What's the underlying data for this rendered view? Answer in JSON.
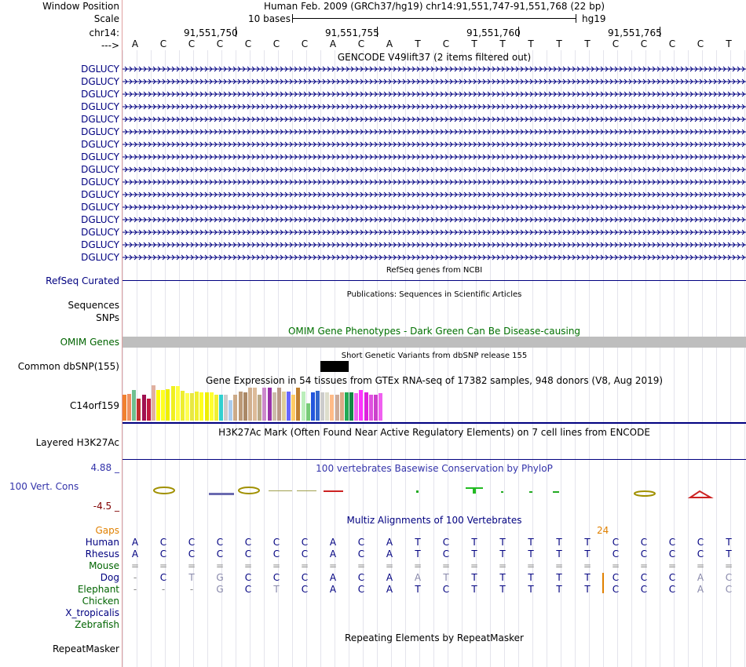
{
  "labels": {
    "window_position": "Window Position",
    "scale": "Scale",
    "chrom": "chr14:",
    "strand_marker": "--->",
    "gene_rows": [
      "DGLUCY",
      "DGLUCY",
      "DGLUCY",
      "DGLUCY",
      "DGLUCY",
      "DGLUCY",
      "DGLUCY",
      "DGLUCY",
      "DGLUCY",
      "DGLUCY",
      "DGLUCY",
      "DGLUCY",
      "DGLUCY",
      "DGLUCY",
      "DGLUCY",
      "DGLUCY"
    ],
    "refseq": "RefSeq Curated",
    "sequences": "Sequences",
    "snps": "SNPs",
    "omim": "OMIM Genes",
    "dbsnp": "Common dbSNP(155)",
    "gtex": "C14orf159",
    "h3k27ac": "Layered H3K27Ac",
    "phylop_max": "4.88 _",
    "phylop": "100 Vert. Cons",
    "phylop_min": "-4.5 _",
    "gaps": "Gaps",
    "species": [
      "Human",
      "Rhesus",
      "Mouse",
      "Dog",
      "Elephant",
      "Chicken",
      "X_tropicalis",
      "Zebrafish"
    ],
    "repeatmasker": "RepeatMasker"
  },
  "header": {
    "position_text": "Human Feb. 2009 (GRCh37/hg19)   chr14:91,551,747-91,551,768 (22 bp)",
    "scale_text": "10 bases",
    "assembly": "hg19",
    "coords": [
      "91,551,750",
      "91,551,755",
      "91,551,760",
      "91,551,765"
    ]
  },
  "sequence": [
    "A",
    "C",
    "C",
    "C",
    "C",
    "C",
    "C",
    "A",
    "C",
    "A",
    "T",
    "C",
    "T",
    "T",
    "T",
    "T",
    "T",
    "C",
    "C",
    "C",
    "C",
    "T"
  ],
  "tracks": {
    "gencode_title": "GENCODE V49lift37 (2 items filtered out)",
    "refseq_title": "RefSeq genes from NCBI",
    "publications_title": "Publications: Sequences in Scientific Articles",
    "omim_title": "OMIM Gene Phenotypes - Dark Green Can Be Disease-causing",
    "dbsnp_title": "Short Genetic Variants from dbSNP release 155",
    "gtex_title": "Gene Expression in 54 tissues from GTEx RNA-seq of 17382 samples, 948 donors (V8, Aug 2019)",
    "h3k27ac_title": "H3K27Ac Mark (Often Found Near Active Regulatory Elements) on 7 cell lines from ENCODE",
    "phylop_title": "100 vertebrates Basewise Conservation by PhyloP",
    "multiz_title": "Multiz Alignments of 100 Vertebrates",
    "gap_value": "24",
    "repeatmasker_title": "Repeating Elements by RepeatMasker"
  },
  "alignment": {
    "human": [
      "A",
      "C",
      "C",
      "C",
      "C",
      "C",
      "C",
      "A",
      "C",
      "A",
      "T",
      "C",
      "T",
      "T",
      "T",
      "T",
      "T",
      "C",
      "C",
      "C",
      "C",
      "T"
    ],
    "rhesus": [
      "A",
      "C",
      "C",
      "C",
      "C",
      "C",
      "C",
      "A",
      "C",
      "A",
      "T",
      "C",
      "T",
      "T",
      "T",
      "T",
      "T",
      "C",
      "C",
      "C",
      "C",
      "T"
    ],
    "mouse": [
      "=",
      "=",
      "=",
      "=",
      "=",
      "=",
      "=",
      "=",
      "=",
      "=",
      "=",
      "=",
      "=",
      "=",
      "=",
      "=",
      "=",
      "=",
      "=",
      "=",
      "=",
      "="
    ],
    "dog": [
      "-",
      "C",
      "T",
      "G",
      "C",
      "C",
      "C",
      "A",
      "C",
      "A",
      "A",
      "T",
      "T",
      "T",
      "T",
      "T",
      "T",
      "C",
      "C",
      "C",
      "A",
      "C"
    ],
    "elephant": [
      "-",
      "-",
      "-",
      "G",
      "C",
      "T",
      "C",
      "A",
      "C",
      "A",
      "T",
      "C",
      "T",
      "T",
      "T",
      "T",
      "T",
      "C",
      "C",
      "C",
      "A",
      "C"
    ]
  },
  "gtex_values": [
    0.55,
    0.57,
    0.65,
    0.47,
    0.55,
    0.47,
    0.75,
    0.65,
    0.65,
    0.67,
    0.74,
    0.74,
    0.64,
    0.58,
    0.58,
    0.62,
    0.6,
    0.6,
    0.6,
    0.55,
    0.55,
    0.55,
    0.44,
    0.55,
    0.62,
    0.6,
    0.7,
    0.7,
    0.55,
    0.7,
    0.7,
    0.6,
    0.7,
    0.62,
    0.62,
    0.55,
    0.7,
    0.62,
    0.37,
    0.6,
    0.64,
    0.6,
    0.6,
    0.55,
    0.55,
    0.6,
    0.6,
    0.6,
    0.58,
    0.65,
    0.6,
    0.55,
    0.55,
    0.58
  ],
  "gtex_colors": [
    "#f08030",
    "#f09060",
    "#70c090",
    "#c03030",
    "#a01050",
    "#c01840",
    "#e0b0a0",
    "#ffff00",
    "#ffff20",
    "#eeee00",
    "#f0f020",
    "#ffff40",
    "#eeee30",
    "#ffff50",
    "#e8e840",
    "#f0f030",
    "#ffff20",
    "#eeee00",
    "#ffff30",
    "#f0f030",
    "#30d0d0",
    "#cccccc",
    "#aaccee",
    "#ccaa88",
    "#bb9977",
    "#aa8866",
    "#d0b090",
    "#ddbb99",
    "#bbaa88",
    "#cc88cc",
    "#9933aa",
    "#ccbbaa",
    "#bb9988",
    "#ddcc99",
    "#6666ff",
    "#ffcc66",
    "#c08030",
    "#bbeebb",
    "#77cc77",
    "#2255dd",
    "#3366cc",
    "#cccccc",
    "#ddddcc",
    "#ffbb88",
    "#ccaa99",
    "#ddaa88",
    "#22aa55",
    "#118844",
    "#ee66ee",
    "#ff33ff",
    "#dd22dd",
    "#e050e0",
    "#cc40cc",
    "#f060f0"
  ]
}
